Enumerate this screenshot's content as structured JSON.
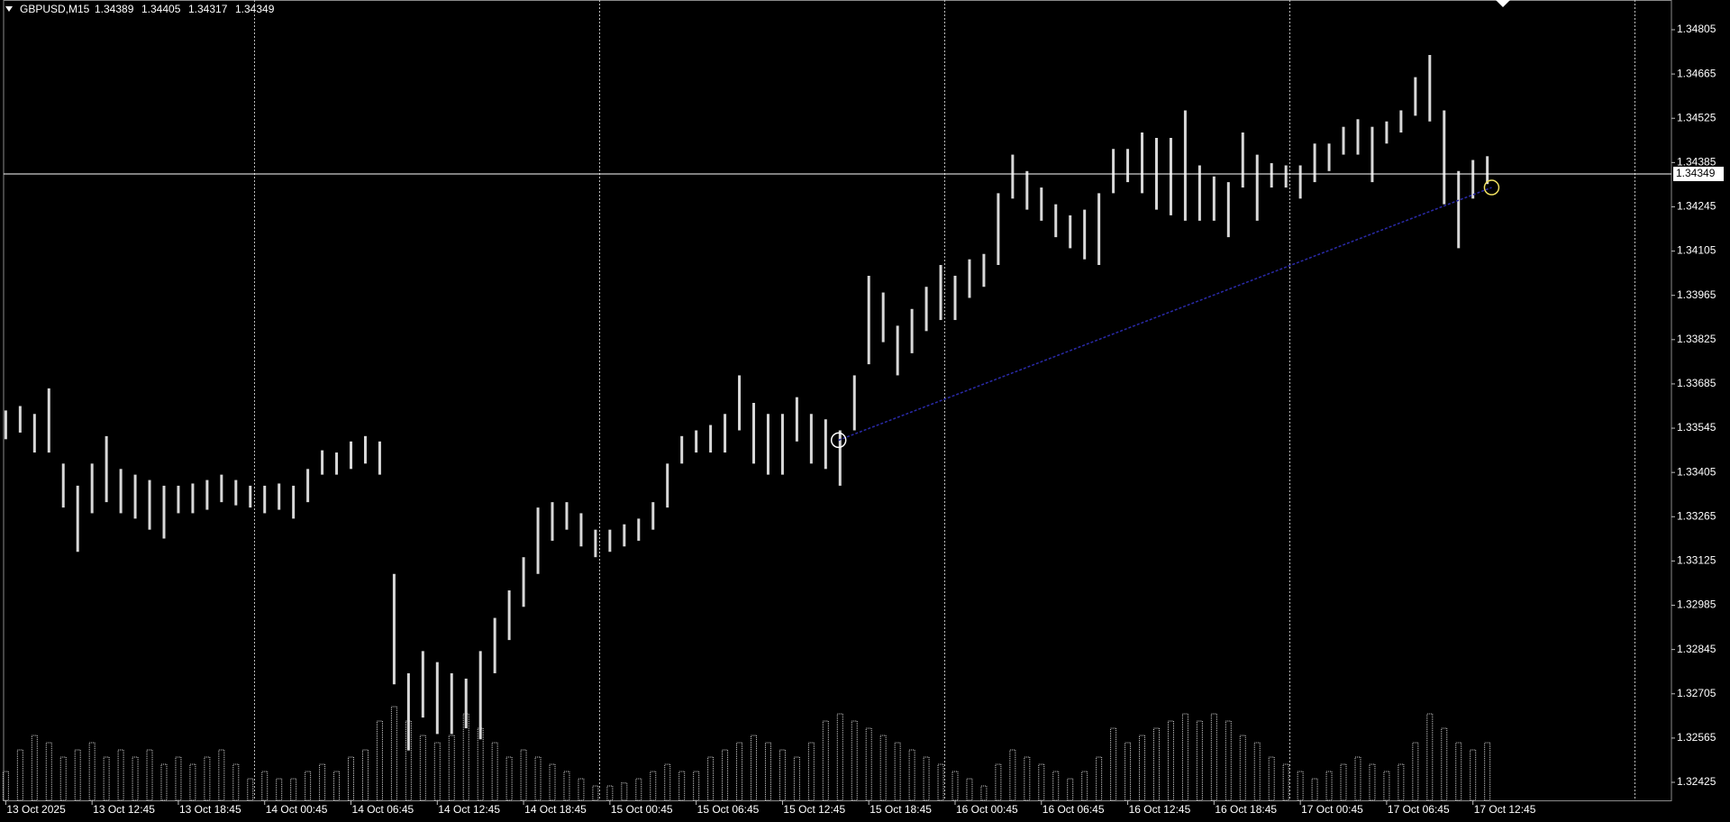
{
  "chart_data": {
    "type": "ohlc",
    "title": "GBPUSD,M15",
    "header_values": [
      1.34389,
      1.34405,
      1.34317,
      1.34349
    ],
    "background": "#000000",
    "bar_color": "#d8d8d8",
    "volume_color": "#cfcfcf",
    "x": [
      0,
      1,
      2,
      3,
      4,
      5,
      6,
      7,
      8,
      9,
      10,
      11,
      12,
      13,
      14,
      15,
      16,
      17,
      18,
      19,
      20,
      21,
      22,
      23,
      24,
      25,
      26,
      27,
      28,
      29,
      30,
      31,
      32,
      33,
      34,
      35,
      36,
      37,
      38,
      39,
      40,
      41,
      42,
      43,
      44,
      45,
      46,
      47,
      48,
      49,
      50,
      51,
      52,
      53,
      54,
      55,
      56,
      57,
      58,
      59,
      60,
      61,
      62,
      63,
      64,
      65,
      66,
      67,
      68,
      69,
      70,
      71,
      72,
      73,
      74,
      75,
      76,
      77,
      78,
      79,
      80,
      81,
      82,
      83,
      84,
      85,
      86,
      87,
      88,
      89,
      90,
      91,
      92,
      93,
      94,
      95,
      96,
      97,
      98,
      99,
      100,
      101,
      102,
      103
    ],
    "high": [
      1.33601,
      1.33615,
      1.3359,
      1.33671,
      1.33433,
      1.33363,
      1.33433,
      1.3352,
      1.33416,
      1.33398,
      1.33381,
      1.33363,
      1.33363,
      1.3337,
      1.33381,
      1.33398,
      1.33381,
      1.33363,
      1.33363,
      1.3337,
      1.33363,
      1.33416,
      1.33475,
      1.33468,
      1.33503,
      1.3352,
      1.33503,
      1.33084,
      1.3277,
      1.3284,
      1.32805,
      1.3277,
      1.32753,
      1.3284,
      1.32945,
      1.33032,
      1.33137,
      1.33294,
      1.33311,
      1.33311,
      1.33276,
      1.33224,
      1.33224,
      1.33241,
      1.33259,
      1.33311,
      1.33433,
      1.3352,
      1.33538,
      1.33555,
      1.3359,
      1.33712,
      1.33625,
      1.3359,
      1.3359,
      1.33643,
      1.3359,
      1.33573,
      1.33538,
      1.33712,
      1.34027,
      1.33974,
      1.33869,
      1.33922,
      1.33992,
      1.34061,
      1.34027,
      1.34079,
      1.34096,
      1.34288,
      1.3441,
      1.34358,
      1.34306,
      1.34253,
      1.34218,
      1.34236,
      1.34288,
      1.34428,
      1.34428,
      1.3448,
      1.34463,
      1.34463,
      1.3455,
      1.34376,
      1.34341,
      1.34323,
      1.3448,
      1.3441,
      1.34383,
      1.34376,
      1.34376,
      1.34445,
      1.34445,
      1.34498,
      1.34522,
      1.34498,
      1.34515,
      1.3455,
      1.34655,
      1.34725,
      1.3455,
      1.34358,
      1.34393,
      1.34405
    ],
    "low": [
      1.3351,
      1.33531,
      1.33468,
      1.33468,
      1.33294,
      1.33154,
      1.33276,
      1.33311,
      1.33276,
      1.33259,
      1.33224,
      1.33196,
      1.33276,
      1.33276,
      1.33287,
      1.33311,
      1.33301,
      1.33294,
      1.33276,
      1.33287,
      1.33259,
      1.33311,
      1.33398,
      1.33398,
      1.33416,
      1.33433,
      1.33398,
      1.32735,
      1.32526,
      1.3263,
      1.32578,
      1.32578,
      1.32596,
      1.32561,
      1.3277,
      1.32875,
      1.3298,
      1.33084,
      1.33189,
      1.33224,
      1.33171,
      1.33137,
      1.33154,
      1.33171,
      1.33189,
      1.33224,
      1.33294,
      1.33433,
      1.33468,
      1.33468,
      1.33468,
      1.33538,
      1.33433,
      1.33398,
      1.33398,
      1.33503,
      1.33433,
      1.33416,
      1.33363,
      1.33538,
      1.33747,
      1.33817,
      1.33712,
      1.33782,
      1.33852,
      1.33887,
      1.33887,
      1.33957,
      1.33992,
      1.34061,
      1.34271,
      1.34236,
      1.34201,
      1.34149,
      1.34114,
      1.34079,
      1.34061,
      1.34288,
      1.34323,
      1.34288,
      1.34236,
      1.34218,
      1.34201,
      1.34201,
      1.34201,
      1.34149,
      1.34306,
      1.34201,
      1.34306,
      1.34306,
      1.34271,
      1.34323,
      1.34358,
      1.3441,
      1.3441,
      1.34323,
      1.34445,
      1.3448,
      1.34533,
      1.34515,
      1.34253,
      1.34114,
      1.34271,
      1.34317
    ],
    "volume": [
      20,
      35,
      45,
      40,
      30,
      35,
      40,
      30,
      35,
      30,
      35,
      25,
      30,
      25,
      30,
      35,
      25,
      15,
      20,
      15,
      15,
      20,
      25,
      20,
      30,
      35,
      55,
      65,
      55,
      45,
      40,
      45,
      60,
      50,
      40,
      30,
      35,
      30,
      25,
      20,
      15,
      10,
      10,
      12,
      15,
      20,
      25,
      20,
      20,
      30,
      35,
      40,
      45,
      40,
      35,
      30,
      40,
      55,
      60,
      55,
      50,
      45,
      40,
      35,
      30,
      25,
      20,
      15,
      10,
      25,
      35,
      30,
      25,
      20,
      15,
      20,
      30,
      50,
      40,
      45,
      50,
      55,
      60,
      55,
      60,
      55,
      45,
      40,
      30,
      25,
      20,
      15,
      20,
      25,
      30,
      25,
      20,
      25,
      40,
      60,
      50,
      40,
      35,
      40
    ],
    "xlim": [
      -0.4,
      115.8
    ],
    "xticks": [
      {
        "value": 0,
        "label": "13 Oct 2025"
      },
      {
        "value": 6,
        "label": "13 Oct 12:45"
      },
      {
        "value": 12,
        "label": "13 Oct 18:45"
      },
      {
        "value": 18,
        "label": "14 Oct 00:45"
      },
      {
        "value": 24,
        "label": "14 Oct 06:45"
      },
      {
        "value": 30,
        "label": "14 Oct 12:45"
      },
      {
        "value": 36,
        "label": "14 Oct 18:45"
      },
      {
        "value": 42,
        "label": "15 Oct 00:45"
      },
      {
        "value": 48,
        "label": "15 Oct 06:45"
      },
      {
        "value": 54,
        "label": "15 Oct 12:45"
      },
      {
        "value": 60,
        "label": "15 Oct 18:45"
      },
      {
        "value": 66,
        "label": "16 Oct 00:45"
      },
      {
        "value": 72,
        "label": "16 Oct 06:45"
      },
      {
        "value": 78,
        "label": "16 Oct 12:45"
      },
      {
        "value": 84,
        "label": "16 Oct 18:45"
      },
      {
        "value": 90,
        "label": "17 Oct 00:45"
      },
      {
        "value": 96,
        "label": "17 Oct 06:45"
      },
      {
        "value": 102,
        "label": "17 Oct 12:45"
      }
    ],
    "day_separators": [
      17.25,
      41.25,
      65.25,
      89.25,
      113.25
    ],
    "ylim": [
      1.32368,
      1.34899
    ],
    "yticks": [
      1.32425,
      1.32565,
      1.32705,
      1.32845,
      1.32985,
      1.33125,
      1.33265,
      1.33405,
      1.33545,
      1.33685,
      1.33825,
      1.33965,
      1.34105,
      1.34245,
      1.34385,
      1.34525,
      1.34665,
      1.34805
    ],
    "last_price": 1.34349,
    "trendline": {
      "x": [
        57.9,
        103.3
      ],
      "y": [
        1.33507,
        1.34306
      ],
      "color": "#2a2aa8"
    }
  }
}
